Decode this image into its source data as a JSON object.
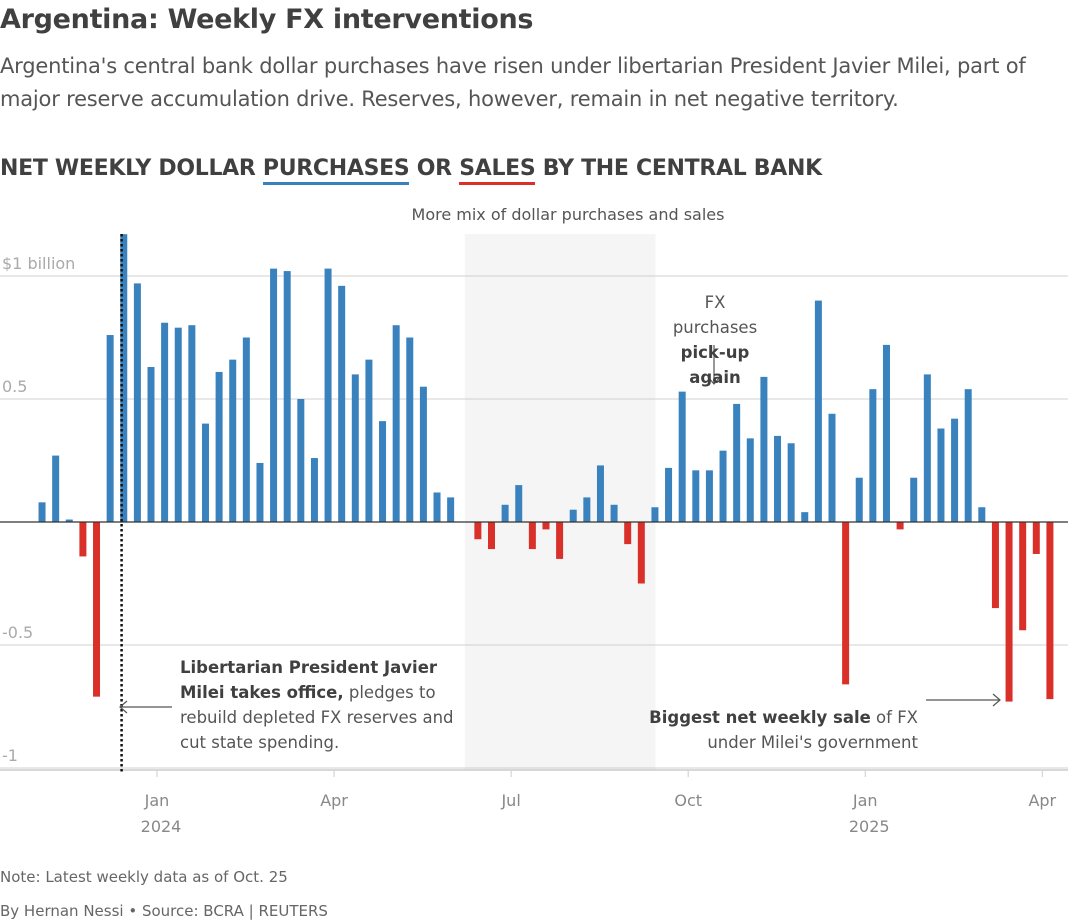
{
  "header": {
    "title": "Argentina: Weekly FX interventions",
    "subtitle": "Argentina's central bank dollar purchases have risen under libertarian President Javier Milei, part of major reserve accumulation drive. Reserves, however, remain in net negative territory."
  },
  "chart_heading": {
    "part1": "NET WEEKLY DOLLAR ",
    "purchases": "PURCHASES",
    "part2": " OR ",
    "sales": "SALES",
    "part3": " BY THE CENTRAL BANK"
  },
  "colors": {
    "purchase": "#3a82be",
    "sale": "#d9302a",
    "shade": "#f5f5f5",
    "grid": "#d0d0d0",
    "axis": "#333333"
  },
  "chart_data": {
    "type": "bar",
    "title": "Net weekly dollar purchases or sales by the central bank",
    "xlabel": "",
    "ylabel": "$ billion",
    "ylim": [
      -1.0,
      1.2
    ],
    "yticks": [
      {
        "value": 1,
        "label": "$1 billion"
      },
      {
        "value": 0.5,
        "label": "0.5"
      },
      {
        "value": -0.5,
        "label": "-0.5"
      },
      {
        "value": -1,
        "label": "-1"
      }
    ],
    "xticks": [
      {
        "week": 0,
        "label": "Jan",
        "sublabel": "2024"
      },
      {
        "week": 13,
        "label": "Apr",
        "sublabel": ""
      },
      {
        "week": 26,
        "label": "Jul",
        "sublabel": ""
      },
      {
        "week": 39,
        "label": "Oct",
        "sublabel": ""
      },
      {
        "week": 52,
        "label": "Jan",
        "sublabel": "2025"
      },
      {
        "week": 65,
        "label": "Apr",
        "sublabel": ""
      }
    ],
    "grid": true,
    "legend": "in-title",
    "start_week": -8,
    "values": [
      0.08,
      0.27,
      0.01,
      -0.14,
      -0.71,
      0.76,
      1.17,
      0.97,
      0.63,
      0.81,
      0.79,
      0.8,
      0.4,
      0.61,
      0.66,
      0.75,
      0.24,
      1.03,
      1.02,
      0.5,
      0.26,
      1.03,
      0.96,
      0.6,
      0.66,
      0.41,
      0.8,
      0.75,
      0.55,
      0.12,
      0.1,
      null,
      -0.07,
      -0.11,
      0.07,
      0.15,
      -0.11,
      -0.03,
      -0.15,
      0.05,
      0.1,
      0.23,
      0.07,
      -0.09,
      -0.25,
      0.06,
      0.22,
      0.53,
      0.21,
      0.21,
      0.29,
      0.48,
      0.34,
      0.59,
      0.35,
      0.32,
      0.04,
      0.9,
      0.44,
      -0.66,
      0.18,
      0.54,
      0.72,
      -0.03,
      0.18,
      0.6,
      0.38,
      0.42,
      0.54,
      0.06,
      -0.35,
      -0.73,
      -0.44,
      -0.13,
      -0.72
    ],
    "milei_takes_office_week": -2.6,
    "shaded_range_weeks": [
      22.6,
      36.6
    ],
    "shaded_label": "More mix of dollar purchases and sales",
    "annotations": [
      {
        "id": "milei",
        "bold": "Libertarian President Javier Milei takes office,",
        "text": " pledges to rebuild depleted FX reserves and cut state spending."
      },
      {
        "id": "pickup",
        "line1": "FX purchases",
        "bold": "pick-up again"
      },
      {
        "id": "biggest",
        "bold": "Biggest net weekly sale",
        "text": " of FX under Milei's government"
      }
    ]
  },
  "annotations": {
    "milei_bold_1": "Libertarian President Javier",
    "milei_bold_2": "Milei takes office,",
    "milei_rest_2": " pledges to",
    "milei_line_3": "rebuild depleted FX reserves and",
    "milei_line_4": "cut state spending.",
    "pickup_line1": "FX purchases",
    "pickup_line2": "pick-up again",
    "biggest_bold": "Biggest net weekly sale",
    "biggest_rest": " of FX",
    "biggest_line2": "under Milei's government"
  },
  "footer": {
    "note": "Note: Latest weekly data as of Oct. 25",
    "credit": "By Hernan Nessi • Source: BCRA | REUTERS"
  }
}
